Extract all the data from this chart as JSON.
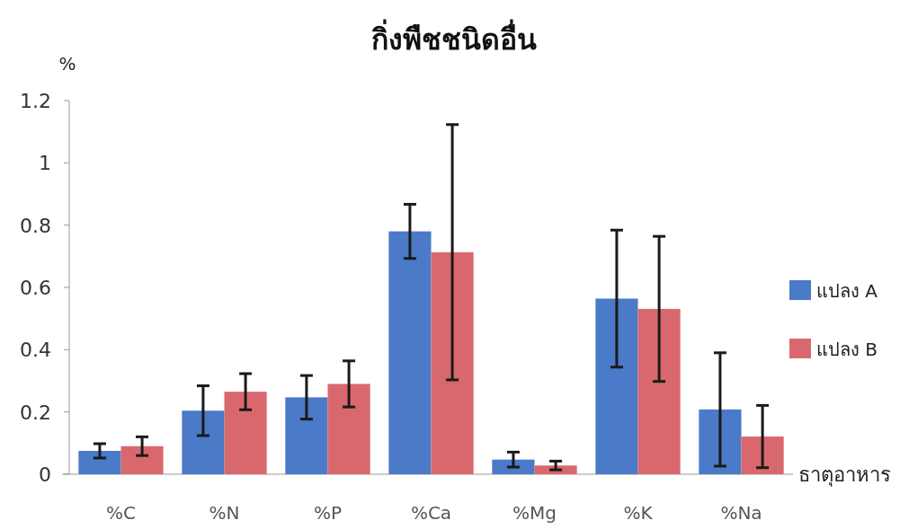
{
  "chart_data": {
    "type": "bar",
    "title": "กิ่งพืชชนิดอื่น",
    "ylabel": "%",
    "xlabel": "ธาตุอาหาร",
    "categories": [
      "%C",
      "%N",
      "%P",
      "%Ca",
      "%Mg",
      "%K",
      "%Na"
    ],
    "series": [
      {
        "name": "แปลง A",
        "color": "#4a7ac8",
        "values": [
          0.075,
          0.204,
          0.247,
          0.78,
          0.047,
          0.564,
          0.208
        ],
        "errors": [
          0.023,
          0.08,
          0.07,
          0.087,
          0.024,
          0.22,
          0.182
        ]
      },
      {
        "name": "แปลง B",
        "color": "#d9686e",
        "values": [
          0.09,
          0.265,
          0.29,
          0.713,
          0.028,
          0.531,
          0.121
        ],
        "errors": [
          0.03,
          0.058,
          0.074,
          0.41,
          0.014,
          0.233,
          0.1
        ]
      }
    ],
    "ylim": [
      0,
      1.2
    ],
    "yticks": [
      0,
      0.2,
      0.4,
      0.6,
      0.8,
      1,
      1.2
    ],
    "legend": "right",
    "grid": false
  }
}
